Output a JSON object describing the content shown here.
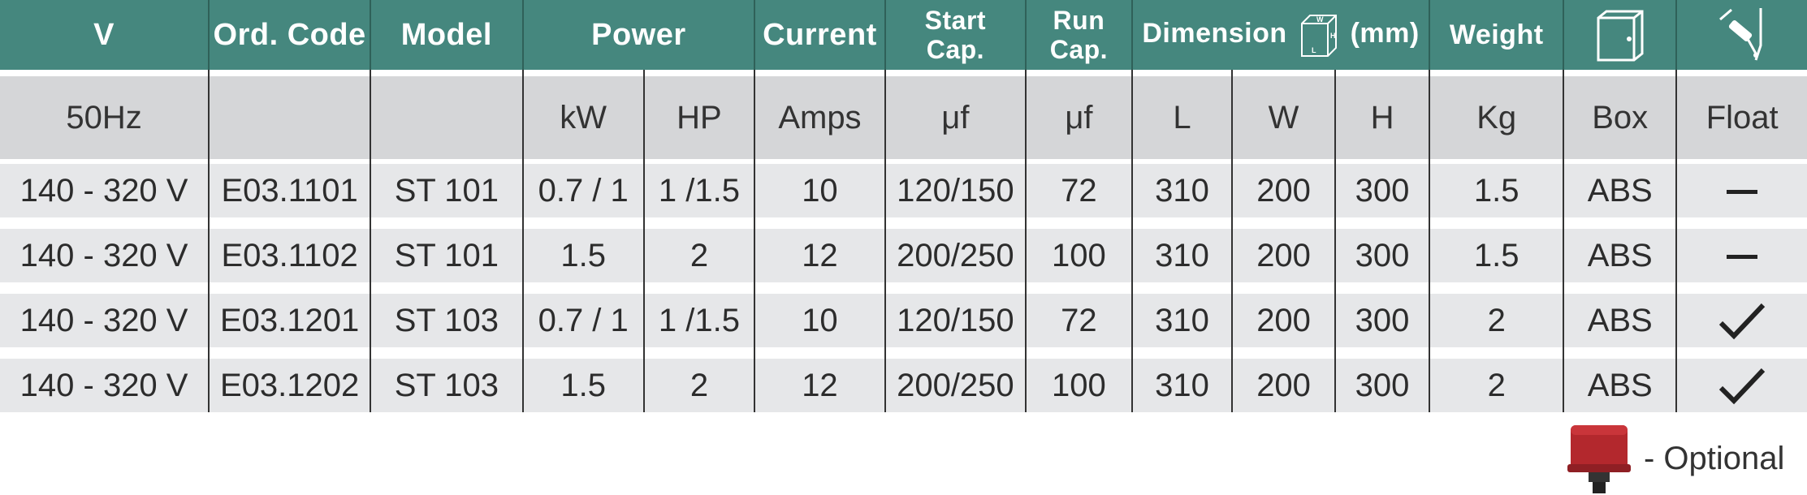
{
  "header": {
    "v": "V",
    "ord_code": "Ord. Code",
    "model": "Model",
    "power": "Power",
    "current": "Current",
    "start_cap_1": "Start",
    "start_cap_2": "Cap.",
    "run_cap_1": "Run",
    "run_cap_2": "Cap.",
    "dimension": "Dimension",
    "dimension_unit": "(mm)",
    "dim_icon_w": "W",
    "dim_icon_h": "H",
    "dim_icon_l": "L",
    "weight": "Weight",
    "box_icon": "box-icon",
    "float_icon": "float-switch-icon"
  },
  "units": {
    "v": "50Hz",
    "ord_code": "",
    "model": "",
    "kw": "kW",
    "hp": "HP",
    "current": "Amps",
    "start_cap": "μf",
    "run_cap": "μf",
    "l": "L",
    "w": "W",
    "h": "H",
    "weight": "Kg",
    "box": "Box",
    "float": "Float"
  },
  "rows": [
    {
      "v": "140 - 320 V",
      "code": "E03.1101",
      "model": "ST 101",
      "kw": "0.7 / 1",
      "hp": "1 /1.5",
      "amps": "10",
      "start": "120/150",
      "run": "72",
      "l": "310",
      "w": "200",
      "h": "300",
      "kg": "1.5",
      "box": "ABS",
      "float": "none"
    },
    {
      "v": "140 - 320 V",
      "code": "E03.1102",
      "model": "ST 101",
      "kw": "1.5",
      "hp": "2",
      "amps": "12",
      "start": "200/250",
      "run": "100",
      "l": "310",
      "w": "200",
      "h": "300",
      "kg": "1.5",
      "box": "ABS",
      "float": "none"
    },
    {
      "v": "140 - 320 V",
      "code": "E03.1201",
      "model": "ST 103",
      "kw": "0.7 / 1",
      "hp": "1 /1.5",
      "amps": "10",
      "start": "120/150",
      "run": "72",
      "l": "310",
      "w": "200",
      "h": "300",
      "kg": "2",
      "box": "ABS",
      "float": "check"
    },
    {
      "v": "140 - 320 V",
      "code": "E03.1202",
      "model": "ST 103",
      "kw": "1.5",
      "hp": "2",
      "amps": "12",
      "start": "200/250",
      "run": "100",
      "l": "310",
      "w": "200",
      "h": "300",
      "kg": "2",
      "box": "ABS",
      "float": "check"
    }
  ],
  "legend": {
    "label": "- Optional",
    "icon": "red-switch-icon",
    "icon_color": "#b3282d"
  },
  "colors": {
    "header_bg": "#45877e",
    "unit_row_bg": "#d5d6d8",
    "data_row_bg": "#e6e7e9"
  }
}
